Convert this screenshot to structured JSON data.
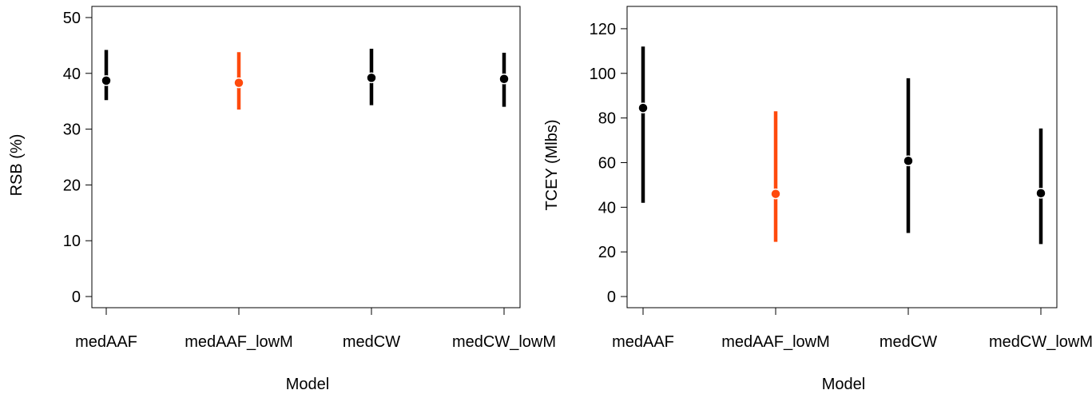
{
  "chart_data": [
    {
      "type": "errorbar",
      "xlabel": "Model",
      "ylabel": "RSB (%)",
      "ylim": [
        -2,
        52
      ],
      "yticks": [
        0,
        10,
        20,
        30,
        40,
        50
      ],
      "grid": false,
      "categories": [
        "medAAF",
        "medAAF_lowM",
        "medCW",
        "medCW_lowM"
      ],
      "points": [
        {
          "category": "medAAF",
          "median": 38.7,
          "lower": 35.2,
          "upper": 44.2,
          "color": "#000000"
        },
        {
          "category": "medAAF_lowM",
          "median": 38.3,
          "lower": 33.5,
          "upper": 43.8,
          "color": "#FF4A0D"
        },
        {
          "category": "medCW",
          "median": 39.2,
          "lower": 34.3,
          "upper": 44.4,
          "color": "#000000"
        },
        {
          "category": "medCW_lowM",
          "median": 39.0,
          "lower": 34.0,
          "upper": 43.7,
          "color": "#000000"
        }
      ]
    },
    {
      "type": "errorbar",
      "xlabel": "Model",
      "ylabel": "TCEY (Mlbs)",
      "ylim": [
        -5,
        130
      ],
      "yticks": [
        0,
        20,
        40,
        60,
        80,
        100,
        120
      ],
      "grid": false,
      "categories": [
        "medAAF",
        "medAAF_lowM",
        "medCW",
        "medCW_lowM"
      ],
      "points": [
        {
          "category": "medAAF",
          "median": 84.5,
          "lower": 42.0,
          "upper": 112.0,
          "color": "#000000"
        },
        {
          "category": "medAAF_lowM",
          "median": 46.0,
          "lower": 24.5,
          "upper": 83.0,
          "color": "#FF4A0D"
        },
        {
          "category": "medCW",
          "median": 60.8,
          "lower": 28.5,
          "upper": 97.8,
          "color": "#000000"
        },
        {
          "category": "medCW_lowM",
          "median": 46.3,
          "lower": 23.5,
          "upper": 75.3,
          "color": "#000000"
        }
      ]
    }
  ]
}
